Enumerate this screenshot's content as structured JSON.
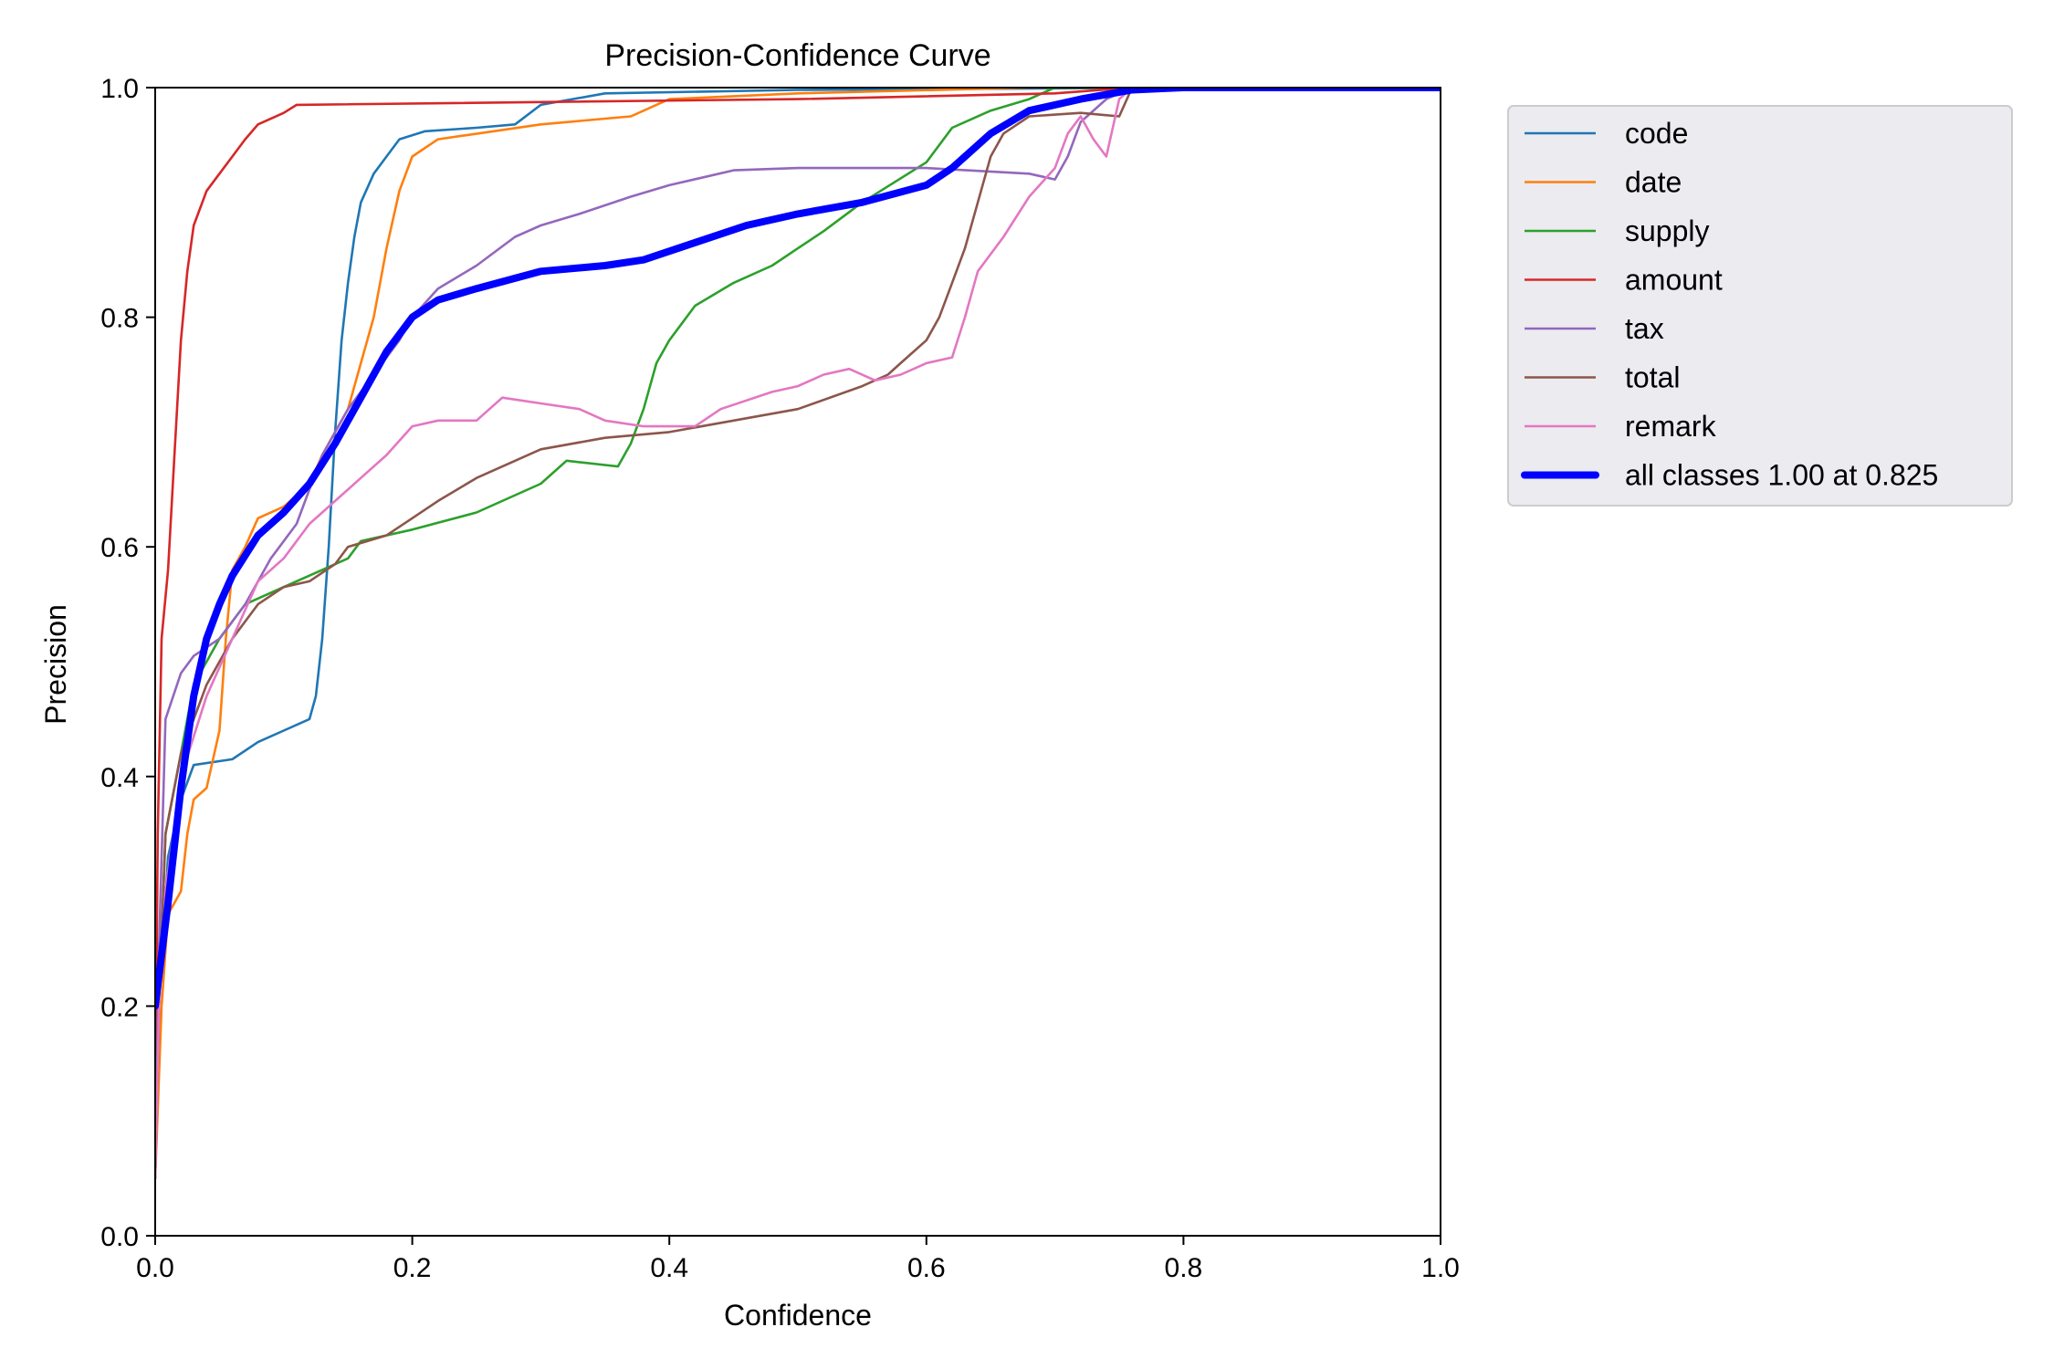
{
  "chart_data": {
    "type": "line",
    "title": "Precision-Confidence Curve",
    "xlabel": "Confidence",
    "ylabel": "Precision",
    "xlim": [
      0,
      1
    ],
    "ylim": [
      0,
      1
    ],
    "xticks": [
      "0.0",
      "0.2",
      "0.4",
      "0.6",
      "0.8",
      "1.0"
    ],
    "yticks": [
      "0.0",
      "0.2",
      "0.4",
      "0.6",
      "0.8",
      "1.0"
    ],
    "grid": false,
    "legend_position": "outside-upper-right",
    "series": [
      {
        "name": "code",
        "color": "#1f77b4",
        "points": [
          [
            0.0,
            0.05
          ],
          [
            0.003,
            0.2
          ],
          [
            0.01,
            0.33
          ],
          [
            0.02,
            0.38
          ],
          [
            0.03,
            0.41
          ],
          [
            0.06,
            0.415
          ],
          [
            0.08,
            0.43
          ],
          [
            0.1,
            0.44
          ],
          [
            0.12,
            0.45
          ],
          [
            0.125,
            0.47
          ],
          [
            0.13,
            0.52
          ],
          [
            0.135,
            0.6
          ],
          [
            0.14,
            0.7
          ],
          [
            0.145,
            0.78
          ],
          [
            0.15,
            0.83
          ],
          [
            0.155,
            0.87
          ],
          [
            0.16,
            0.9
          ],
          [
            0.17,
            0.925
          ],
          [
            0.18,
            0.94
          ],
          [
            0.19,
            0.955
          ],
          [
            0.21,
            0.962
          ],
          [
            0.25,
            0.965
          ],
          [
            0.28,
            0.968
          ],
          [
            0.3,
            0.985
          ],
          [
            0.35,
            0.995
          ],
          [
            0.5,
            0.998
          ],
          [
            0.8,
            1.0
          ],
          [
            1.0,
            1.0
          ]
        ]
      },
      {
        "name": "date",
        "color": "#ff7f0e",
        "points": [
          [
            0.0,
            0.05
          ],
          [
            0.005,
            0.2
          ],
          [
            0.01,
            0.28
          ],
          [
            0.02,
            0.3
          ],
          [
            0.025,
            0.35
          ],
          [
            0.03,
            0.38
          ],
          [
            0.04,
            0.39
          ],
          [
            0.05,
            0.44
          ],
          [
            0.055,
            0.52
          ],
          [
            0.06,
            0.58
          ],
          [
            0.07,
            0.6
          ],
          [
            0.08,
            0.625
          ],
          [
            0.1,
            0.635
          ],
          [
            0.12,
            0.655
          ],
          [
            0.13,
            0.68
          ],
          [
            0.15,
            0.72
          ],
          [
            0.16,
            0.76
          ],
          [
            0.17,
            0.8
          ],
          [
            0.18,
            0.86
          ],
          [
            0.19,
            0.91
          ],
          [
            0.2,
            0.94
          ],
          [
            0.22,
            0.955
          ],
          [
            0.3,
            0.968
          ],
          [
            0.37,
            0.975
          ],
          [
            0.4,
            0.99
          ],
          [
            0.5,
            0.995
          ],
          [
            0.68,
            1.0
          ],
          [
            1.0,
            1.0
          ]
        ]
      },
      {
        "name": "supply",
        "color": "#2ca02c",
        "points": [
          [
            0.0,
            0.05
          ],
          [
            0.003,
            0.2
          ],
          [
            0.008,
            0.35
          ],
          [
            0.02,
            0.42
          ],
          [
            0.03,
            0.48
          ],
          [
            0.05,
            0.52
          ],
          [
            0.07,
            0.55
          ],
          [
            0.1,
            0.565
          ],
          [
            0.13,
            0.58
          ],
          [
            0.15,
            0.59
          ],
          [
            0.16,
            0.605
          ],
          [
            0.2,
            0.615
          ],
          [
            0.25,
            0.63
          ],
          [
            0.3,
            0.655
          ],
          [
            0.32,
            0.675
          ],
          [
            0.36,
            0.67
          ],
          [
            0.37,
            0.69
          ],
          [
            0.38,
            0.72
          ],
          [
            0.39,
            0.76
          ],
          [
            0.4,
            0.78
          ],
          [
            0.42,
            0.81
          ],
          [
            0.45,
            0.83
          ],
          [
            0.48,
            0.845
          ],
          [
            0.5,
            0.86
          ],
          [
            0.52,
            0.875
          ],
          [
            0.55,
            0.9
          ],
          [
            0.6,
            0.935
          ],
          [
            0.62,
            0.965
          ],
          [
            0.65,
            0.98
          ],
          [
            0.68,
            0.99
          ],
          [
            0.7,
            1.0
          ],
          [
            1.0,
            1.0
          ]
        ]
      },
      {
        "name": "amount",
        "color": "#d62728",
        "points": [
          [
            0.0,
            0.1
          ],
          [
            0.002,
            0.35
          ],
          [
            0.005,
            0.52
          ],
          [
            0.01,
            0.58
          ],
          [
            0.015,
            0.68
          ],
          [
            0.02,
            0.78
          ],
          [
            0.025,
            0.84
          ],
          [
            0.03,
            0.88
          ],
          [
            0.04,
            0.91
          ],
          [
            0.05,
            0.925
          ],
          [
            0.06,
            0.94
          ],
          [
            0.07,
            0.955
          ],
          [
            0.08,
            0.968
          ],
          [
            0.1,
            0.978
          ],
          [
            0.11,
            0.985
          ],
          [
            0.5,
            0.99
          ],
          [
            0.7,
            0.995
          ],
          [
            0.76,
            1.0
          ],
          [
            1.0,
            1.0
          ]
        ]
      },
      {
        "name": "tax",
        "color": "#9467bd",
        "points": [
          [
            0.0,
            0.05
          ],
          [
            0.003,
            0.25
          ],
          [
            0.008,
            0.45
          ],
          [
            0.02,
            0.49
          ],
          [
            0.03,
            0.505
          ],
          [
            0.05,
            0.52
          ],
          [
            0.07,
            0.55
          ],
          [
            0.09,
            0.59
          ],
          [
            0.11,
            0.62
          ],
          [
            0.13,
            0.68
          ],
          [
            0.15,
            0.72
          ],
          [
            0.17,
            0.75
          ],
          [
            0.19,
            0.78
          ],
          [
            0.2,
            0.8
          ],
          [
            0.22,
            0.825
          ],
          [
            0.25,
            0.845
          ],
          [
            0.28,
            0.87
          ],
          [
            0.3,
            0.88
          ],
          [
            0.33,
            0.89
          ],
          [
            0.37,
            0.905
          ],
          [
            0.4,
            0.915
          ],
          [
            0.45,
            0.928
          ],
          [
            0.5,
            0.93
          ],
          [
            0.6,
            0.93
          ],
          [
            0.68,
            0.925
          ],
          [
            0.7,
            0.92
          ],
          [
            0.71,
            0.94
          ],
          [
            0.72,
            0.97
          ],
          [
            0.74,
            0.99
          ],
          [
            0.76,
            1.0
          ],
          [
            1.0,
            1.0
          ]
        ]
      },
      {
        "name": "total",
        "color": "#8c564b",
        "points": [
          [
            0.0,
            0.05
          ],
          [
            0.003,
            0.2
          ],
          [
            0.008,
            0.35
          ],
          [
            0.02,
            0.42
          ],
          [
            0.04,
            0.48
          ],
          [
            0.06,
            0.52
          ],
          [
            0.08,
            0.55
          ],
          [
            0.1,
            0.565
          ],
          [
            0.12,
            0.57
          ],
          [
            0.14,
            0.585
          ],
          [
            0.15,
            0.6
          ],
          [
            0.18,
            0.61
          ],
          [
            0.2,
            0.625
          ],
          [
            0.22,
            0.64
          ],
          [
            0.25,
            0.66
          ],
          [
            0.3,
            0.685
          ],
          [
            0.35,
            0.695
          ],
          [
            0.4,
            0.7
          ],
          [
            0.45,
            0.71
          ],
          [
            0.5,
            0.72
          ],
          [
            0.55,
            0.74
          ],
          [
            0.57,
            0.75
          ],
          [
            0.58,
            0.76
          ],
          [
            0.6,
            0.78
          ],
          [
            0.61,
            0.8
          ],
          [
            0.62,
            0.83
          ],
          [
            0.63,
            0.86
          ],
          [
            0.64,
            0.9
          ],
          [
            0.65,
            0.94
          ],
          [
            0.66,
            0.96
          ],
          [
            0.68,
            0.975
          ],
          [
            0.72,
            0.978
          ],
          [
            0.75,
            0.975
          ],
          [
            0.76,
            1.0
          ],
          [
            1.0,
            1.0
          ]
        ]
      },
      {
        "name": "remark",
        "color": "#e377c2",
        "points": [
          [
            0.0,
            0.05
          ],
          [
            0.003,
            0.2
          ],
          [
            0.008,
            0.3
          ],
          [
            0.02,
            0.4
          ],
          [
            0.04,
            0.47
          ],
          [
            0.06,
            0.52
          ],
          [
            0.08,
            0.57
          ],
          [
            0.1,
            0.59
          ],
          [
            0.12,
            0.62
          ],
          [
            0.14,
            0.64
          ],
          [
            0.16,
            0.66
          ],
          [
            0.18,
            0.68
          ],
          [
            0.2,
            0.705
          ],
          [
            0.22,
            0.71
          ],
          [
            0.25,
            0.71
          ],
          [
            0.27,
            0.73
          ],
          [
            0.3,
            0.725
          ],
          [
            0.33,
            0.72
          ],
          [
            0.35,
            0.71
          ],
          [
            0.38,
            0.705
          ],
          [
            0.42,
            0.705
          ],
          [
            0.44,
            0.72
          ],
          [
            0.48,
            0.735
          ],
          [
            0.5,
            0.74
          ],
          [
            0.52,
            0.75
          ],
          [
            0.54,
            0.755
          ],
          [
            0.56,
            0.745
          ],
          [
            0.58,
            0.75
          ],
          [
            0.6,
            0.76
          ],
          [
            0.62,
            0.765
          ],
          [
            0.63,
            0.8
          ],
          [
            0.64,
            0.84
          ],
          [
            0.66,
            0.87
          ],
          [
            0.68,
            0.905
          ],
          [
            0.7,
            0.93
          ],
          [
            0.71,
            0.96
          ],
          [
            0.72,
            0.975
          ],
          [
            0.73,
            0.955
          ],
          [
            0.74,
            0.94
          ],
          [
            0.75,
            0.99
          ],
          [
            0.76,
            1.0
          ],
          [
            1.0,
            1.0
          ]
        ]
      },
      {
        "name": "all classes 1.00 at 0.825",
        "color": "#0000ff",
        "bold": true,
        "points": [
          [
            0.0,
            0.2
          ],
          [
            0.01,
            0.29
          ],
          [
            0.02,
            0.39
          ],
          [
            0.03,
            0.47
          ],
          [
            0.04,
            0.52
          ],
          [
            0.05,
            0.55
          ],
          [
            0.06,
            0.575
          ],
          [
            0.08,
            0.61
          ],
          [
            0.1,
            0.63
          ],
          [
            0.12,
            0.655
          ],
          [
            0.14,
            0.69
          ],
          [
            0.16,
            0.73
          ],
          [
            0.18,
            0.77
          ],
          [
            0.2,
            0.8
          ],
          [
            0.22,
            0.815
          ],
          [
            0.25,
            0.825
          ],
          [
            0.3,
            0.84
          ],
          [
            0.35,
            0.845
          ],
          [
            0.38,
            0.85
          ],
          [
            0.42,
            0.865
          ],
          [
            0.46,
            0.88
          ],
          [
            0.5,
            0.89
          ],
          [
            0.55,
            0.9
          ],
          [
            0.6,
            0.915
          ],
          [
            0.62,
            0.93
          ],
          [
            0.65,
            0.96
          ],
          [
            0.68,
            0.98
          ],
          [
            0.72,
            0.99
          ],
          [
            0.76,
            0.998
          ],
          [
            0.8,
            1.0
          ],
          [
            1.0,
            1.0
          ]
        ]
      }
    ]
  }
}
